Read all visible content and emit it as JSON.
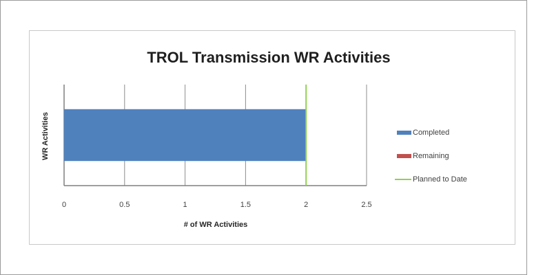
{
  "chart_data": {
    "type": "bar",
    "orientation": "horizontal",
    "stacked": true,
    "title": "TROL Transmission WR Activities",
    "xlabel": "# of WR Activities",
    "ylabel": "WR Activities",
    "categories": [
      null
    ],
    "series": [
      {
        "name": "Completed",
        "color": "#4f81bd",
        "values": [
          2
        ]
      },
      {
        "name": "Remaining",
        "color": "#c0504d",
        "values": [
          0
        ]
      },
      {
        "name": "Planned to Date",
        "color": "#92d050",
        "values": [
          2
        ],
        "type": "line"
      }
    ],
    "xlim": [
      0,
      2.5
    ],
    "xticks": [
      0,
      0.5,
      1,
      1.5,
      2,
      2.5
    ],
    "grid": true,
    "legend": "right"
  }
}
